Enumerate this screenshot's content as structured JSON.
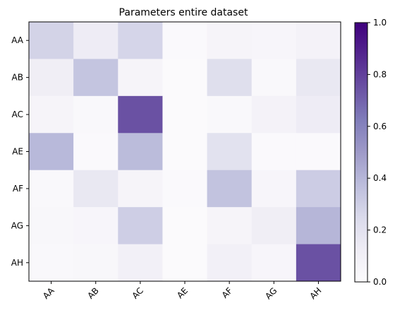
{
  "chart_data": {
    "type": "heatmap",
    "title": "Parameters entire dataset",
    "x_categories": [
      "AA",
      "AB",
      "AC",
      "AE",
      "AF",
      "AG",
      "AH"
    ],
    "y_categories": [
      "AA",
      "AB",
      "AC",
      "AE",
      "AF",
      "AG",
      "AH"
    ],
    "values": [
      [
        0.28,
        0.13,
        0.27,
        0.02,
        0.06,
        0.05,
        0.08
      ],
      [
        0.12,
        0.34,
        0.06,
        0.01,
        0.22,
        0.03,
        0.16
      ],
      [
        0.06,
        0.03,
        0.75,
        0.01,
        0.03,
        0.08,
        0.13
      ],
      [
        0.39,
        0.02,
        0.38,
        0.01,
        0.2,
        0.02,
        0.02
      ],
      [
        0.03,
        0.16,
        0.06,
        0.02,
        0.35,
        0.05,
        0.31
      ],
      [
        0.04,
        0.05,
        0.3,
        0.01,
        0.06,
        0.12,
        0.4
      ],
      [
        0.03,
        0.04,
        0.1,
        0.01,
        0.1,
        0.05,
        0.75
      ]
    ],
    "colormap": "Purples",
    "vmin": 0.0,
    "vmax": 1.0,
    "colorbar_ticks": [
      "0.0",
      "0.2",
      "0.4",
      "0.6",
      "0.8",
      "1.0"
    ],
    "xtick_rotation": 45
  }
}
